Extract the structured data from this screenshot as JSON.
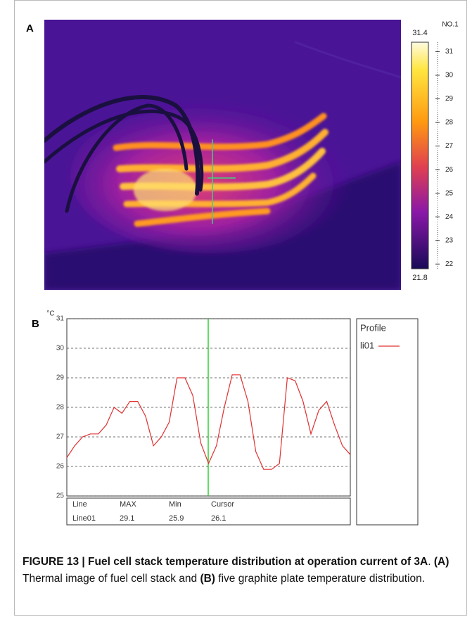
{
  "panel_labels": [
    "A",
    "B"
  ],
  "chart_data": [
    {
      "type": "colorbar",
      "title": "NO.1",
      "ylim": [
        21.8,
        31.4
      ],
      "yticks": [
        22,
        23,
        24,
        25,
        26,
        27,
        28,
        29,
        30,
        31
      ]
    },
    {
      "type": "line",
      "y_unit": "°C",
      "ylim": [
        25,
        31
      ],
      "yticks": [
        25,
        26,
        27,
        28,
        29,
        30,
        31
      ],
      "grid": true,
      "legend_title": "Profile",
      "series": [
        {
          "name": "li01",
          "color": "#e03030",
          "values": [
            26.3,
            26.7,
            27.0,
            27.1,
            27.1,
            27.4,
            28.0,
            27.8,
            28.2,
            28.2,
            27.7,
            26.7,
            27.0,
            27.5,
            29.0,
            29.0,
            28.4,
            26.8,
            26.1,
            26.7,
            28.0,
            29.1,
            29.1,
            28.2,
            26.5,
            25.9,
            25.9,
            26.1,
            29.0,
            28.9,
            28.2,
            27.1,
            27.9,
            28.2,
            27.4,
            26.7,
            26.4
          ]
        }
      ],
      "table": {
        "header": [
          "Line",
          "MAX",
          "Min",
          "Cursor"
        ],
        "rows": [
          [
            "Line01",
            "29.1",
            "25.9",
            "26.1"
          ]
        ]
      }
    }
  ],
  "caption": [
    {
      "text": "FIGURE 13 | Fuel cell stack temperature distribution at operation current of 3A",
      "bold": true
    },
    {
      "text": ".",
      "bold": false
    },
    {
      "text": "(A)",
      "bold": true
    },
    {
      "text": "Thermal image of fuel cell stack and",
      "bold": false
    },
    {
      "text": "(B)",
      "bold": true
    },
    {
      "text": "five graphite plate temperature distribution.",
      "bold": false
    }
  ]
}
